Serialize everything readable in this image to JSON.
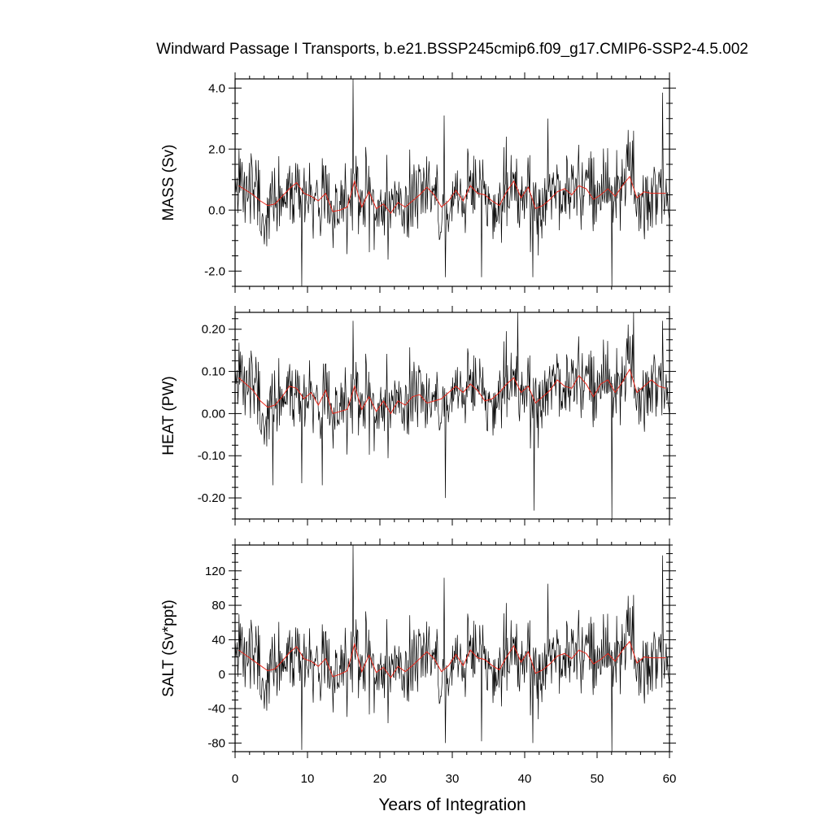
{
  "title": "Windward Passage I Transports, b.e21.BSSP245cmip6.f09_g17.CMIP6-SSP2-4.5.002",
  "xlabel": "Years of Integration",
  "colors": {
    "monthly": "#000000",
    "annual": "#e8261a"
  },
  "chart_data": [
    {
      "type": "line",
      "ylabel": "MASS (Sv)",
      "xlim": [
        0,
        60
      ],
      "ylim": [
        -2.5,
        4.3
      ],
      "yticks": [
        -2.0,
        0.0,
        2.0,
        4.0
      ],
      "ytick_labels": [
        "-2.0",
        "0.0",
        "2.0",
        "4.0"
      ],
      "xticks": [
        0,
        10,
        20,
        30,
        40,
        50,
        60
      ],
      "grid": false,
      "monthly_stats": {
        "mean": 0.45,
        "std": 0.72,
        "min": -2.5,
        "max": 4.3
      },
      "monthly_spikes": [
        [
          16.3,
          4.3
        ],
        [
          59.0,
          3.85
        ],
        [
          28.9,
          3.1
        ],
        [
          43.2,
          3.0
        ],
        [
          55.0,
          2.6
        ],
        [
          9.2,
          -2.5
        ],
        [
          52.0,
          -2.5
        ],
        [
          29.0,
          -2.2
        ],
        [
          41.1,
          -2.2
        ],
        [
          34.0,
          -2.2
        ]
      ],
      "annual": {
        "x": [
          0.5,
          1.5,
          2.5,
          3.5,
          4.5,
          5.5,
          6.5,
          7.5,
          8.5,
          9.5,
          10.5,
          11.5,
          12.5,
          13.5,
          14.5,
          15.5,
          16.5,
          17.5,
          18.5,
          19.5,
          20.5,
          21.5,
          22.5,
          23.5,
          24.5,
          25.5,
          26.5,
          27.5,
          28.5,
          29.5,
          30.5,
          31.5,
          32.5,
          33.5,
          34.5,
          35.5,
          36.5,
          37.5,
          38.5,
          39.5,
          40.5,
          41.5,
          42.5,
          43.5,
          44.5,
          45.5,
          46.5,
          47.5,
          48.5,
          49.5,
          50.5,
          51.5,
          52.5,
          53.5,
          54.5,
          55.5,
          56.5,
          57.5,
          58.5,
          59.5
        ],
        "y": [
          0.8,
          0.65,
          0.5,
          0.3,
          0.15,
          0.2,
          0.45,
          0.7,
          0.9,
          0.55,
          0.45,
          0.3,
          0.55,
          -0.05,
          0.0,
          0.1,
          0.95,
          0.1,
          0.6,
          0.05,
          0.2,
          -0.1,
          0.25,
          0.1,
          0.3,
          0.5,
          0.75,
          0.5,
          0.1,
          0.3,
          0.65,
          0.3,
          0.8,
          0.55,
          0.5,
          0.3,
          0.15,
          0.6,
          0.95,
          0.4,
          0.75,
          0.05,
          0.15,
          0.35,
          0.6,
          0.7,
          0.5,
          0.8,
          0.7,
          0.35,
          0.5,
          0.7,
          0.45,
          0.8,
          1.1,
          0.4,
          0.6,
          0.55,
          0.55,
          0.55
        ]
      }
    },
    {
      "type": "line",
      "ylabel": "HEAT (PW)",
      "xlim": [
        0,
        60
      ],
      "ylim": [
        -0.25,
        0.24
      ],
      "yticks": [
        -0.2,
        -0.1,
        0.0,
        0.1,
        0.2
      ],
      "ytick_labels": [
        "-0.20",
        "-0.10",
        "0.00",
        "0.10",
        "0.20"
      ],
      "xticks": [
        0,
        10,
        20,
        30,
        40,
        50,
        60
      ],
      "grid": false,
      "monthly_stats": {
        "mean": 0.04,
        "std": 0.05,
        "min": -0.25,
        "max": 0.24
      },
      "monthly_spikes": [
        [
          16.3,
          0.22
        ],
        [
          59.0,
          0.22
        ],
        [
          39.0,
          0.24
        ],
        [
          55.0,
          0.24
        ],
        [
          29.0,
          -0.2
        ],
        [
          41.3,
          -0.23
        ],
        [
          52.0,
          -0.25
        ],
        [
          5.2,
          -0.17
        ],
        [
          12.0,
          -0.17
        ],
        [
          9.2,
          -0.165
        ]
      ],
      "annual": {
        "x": [
          0.5,
          1.5,
          2.5,
          3.5,
          4.5,
          5.5,
          6.5,
          7.5,
          8.5,
          9.5,
          10.5,
          11.5,
          12.5,
          13.5,
          14.5,
          15.5,
          16.5,
          17.5,
          18.5,
          19.5,
          20.5,
          21.5,
          22.5,
          23.5,
          24.5,
          25.5,
          26.5,
          27.5,
          28.5,
          29.5,
          30.5,
          31.5,
          32.5,
          33.5,
          34.5,
          35.5,
          36.5,
          37.5,
          38.5,
          39.5,
          40.5,
          41.5,
          42.5,
          43.5,
          44.5,
          45.5,
          46.5,
          47.5,
          48.5,
          49.5,
          50.5,
          51.5,
          52.5,
          53.5,
          54.5,
          55.5,
          56.5,
          57.5,
          58.5,
          59.5
        ],
        "y": [
          0.085,
          0.07,
          0.055,
          0.03,
          0.015,
          0.02,
          0.04,
          0.065,
          0.06,
          0.035,
          0.05,
          0.02,
          0.055,
          0.0,
          0.005,
          0.01,
          0.065,
          0.01,
          0.04,
          0.005,
          0.03,
          0.0,
          0.03,
          0.02,
          0.04,
          0.045,
          0.025,
          0.03,
          0.035,
          0.05,
          0.065,
          0.05,
          0.07,
          0.055,
          0.03,
          0.035,
          0.05,
          0.07,
          0.085,
          0.05,
          0.065,
          0.025,
          0.04,
          0.055,
          0.08,
          0.065,
          0.06,
          0.09,
          0.07,
          0.04,
          0.07,
          0.08,
          0.05,
          0.075,
          0.105,
          0.05,
          0.065,
          0.08,
          0.065,
          0.06
        ]
      }
    },
    {
      "type": "line",
      "ylabel": "SALT (Sv*ppt)",
      "xlim": [
        0,
        60
      ],
      "ylim": [
        -90,
        150
      ],
      "yticks": [
        -80,
        -40,
        0,
        40,
        80,
        120
      ],
      "ytick_labels": [
        "-80",
        "-40",
        "0",
        "40",
        "80",
        "120"
      ],
      "xticks": [
        0,
        10,
        20,
        30,
        40,
        50,
        60
      ],
      "grid": false,
      "monthly_stats": {
        "mean": 16,
        "std": 25,
        "min": -90,
        "max": 150
      },
      "monthly_spikes": [
        [
          16.3,
          150
        ],
        [
          59.0,
          138
        ],
        [
          28.9,
          112
        ],
        [
          43.2,
          105
        ],
        [
          55.0,
          92
        ],
        [
          9.2,
          -88
        ],
        [
          52.0,
          -90
        ],
        [
          29.0,
          -80
        ],
        [
          41.1,
          -80
        ],
        [
          34.0,
          -78
        ]
      ],
      "annual": {
        "x": [
          0.5,
          1.5,
          2.5,
          3.5,
          4.5,
          5.5,
          6.5,
          7.5,
          8.5,
          9.5,
          10.5,
          11.5,
          12.5,
          13.5,
          14.5,
          15.5,
          16.5,
          17.5,
          18.5,
          19.5,
          20.5,
          21.5,
          22.5,
          23.5,
          24.5,
          25.5,
          26.5,
          27.5,
          28.5,
          29.5,
          30.5,
          31.5,
          32.5,
          33.5,
          34.5,
          35.5,
          36.5,
          37.5,
          38.5,
          39.5,
          40.5,
          41.5,
          42.5,
          43.5,
          44.5,
          45.5,
          46.5,
          47.5,
          48.5,
          49.5,
          50.5,
          51.5,
          52.5,
          53.5,
          54.5,
          55.5,
          56.5,
          57.5,
          58.5,
          59.5
        ],
        "y": [
          28,
          22,
          16,
          10,
          4,
          6,
          15,
          25,
          32,
          18,
          15,
          9,
          18,
          -3,
          0,
          4,
          35,
          3,
          22,
          2,
          8,
          -4,
          9,
          3,
          10,
          18,
          26,
          18,
          3,
          10,
          23,
          10,
          28,
          19,
          17,
          10,
          5,
          20,
          33,
          14,
          26,
          1,
          5,
          12,
          21,
          24,
          18,
          28,
          24,
          12,
          17,
          24,
          15,
          28,
          38,
          13,
          20,
          19,
          19,
          19
        ]
      }
    }
  ]
}
